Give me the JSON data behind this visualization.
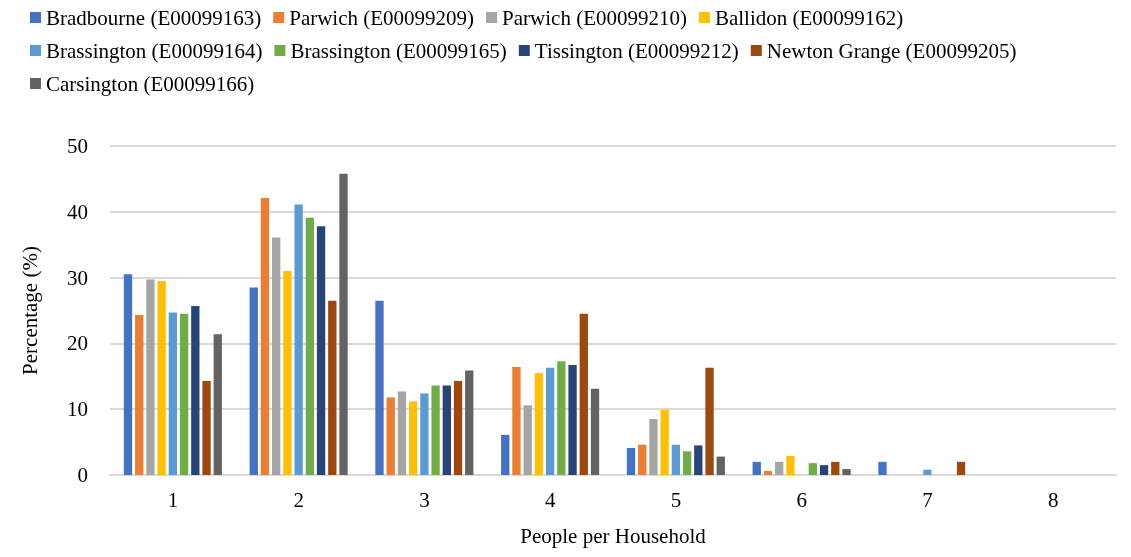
{
  "chart_data": {
    "type": "bar",
    "xlabel": "People per Household",
    "ylabel": "Percentage (%)",
    "categories": [
      "1",
      "2",
      "3",
      "4",
      "5",
      "6",
      "7",
      "8"
    ],
    "ylim": [
      0,
      50
    ],
    "yticks": [
      0,
      10,
      20,
      30,
      40,
      50
    ],
    "grid": "y",
    "legend": "top",
    "series": [
      {
        "name": "Bradbourne (E00099163)",
        "color": "#4472c4",
        "values": [
          30.5,
          28.5,
          26.5,
          6.1,
          4.1,
          2.0,
          2.0,
          null
        ]
      },
      {
        "name": "Parwich (E00099209)",
        "color": "#ed7d31",
        "values": [
          24.3,
          42.1,
          11.8,
          16.4,
          4.6,
          0.6,
          null,
          null
        ]
      },
      {
        "name": "Parwich (E00099210)",
        "color": "#a5a5a5",
        "values": [
          29.7,
          36.1,
          12.7,
          10.6,
          8.5,
          2.0,
          null,
          null
        ]
      },
      {
        "name": "Ballidon (E00099162)",
        "color": "#ffc000",
        "values": [
          29.5,
          31.0,
          11.2,
          15.5,
          9.9,
          2.9,
          null,
          null
        ]
      },
      {
        "name": "Brassington (E00099164)",
        "color": "#5b9bd5",
        "values": [
          24.7,
          41.1,
          12.4,
          16.3,
          4.6,
          null,
          0.8,
          null
        ]
      },
      {
        "name": "Brassington (E00099165)",
        "color": "#70ad47",
        "values": [
          24.5,
          39.1,
          13.6,
          17.3,
          3.6,
          1.8,
          null,
          null
        ]
      },
      {
        "name": "Tissington (E00099212)",
        "color": "#264478",
        "values": [
          25.7,
          37.8,
          13.6,
          16.7,
          4.5,
          1.5,
          null,
          null
        ]
      },
      {
        "name": "Newton Grange (E00099205)",
        "color": "#9e480e",
        "values": [
          14.3,
          26.5,
          14.3,
          24.5,
          16.3,
          2.0,
          2.0,
          null
        ]
      },
      {
        "name": "Carsington (E00099166)",
        "color": "#636363",
        "values": [
          21.4,
          45.8,
          15.9,
          13.1,
          2.8,
          0.9,
          null,
          null
        ]
      }
    ]
  }
}
